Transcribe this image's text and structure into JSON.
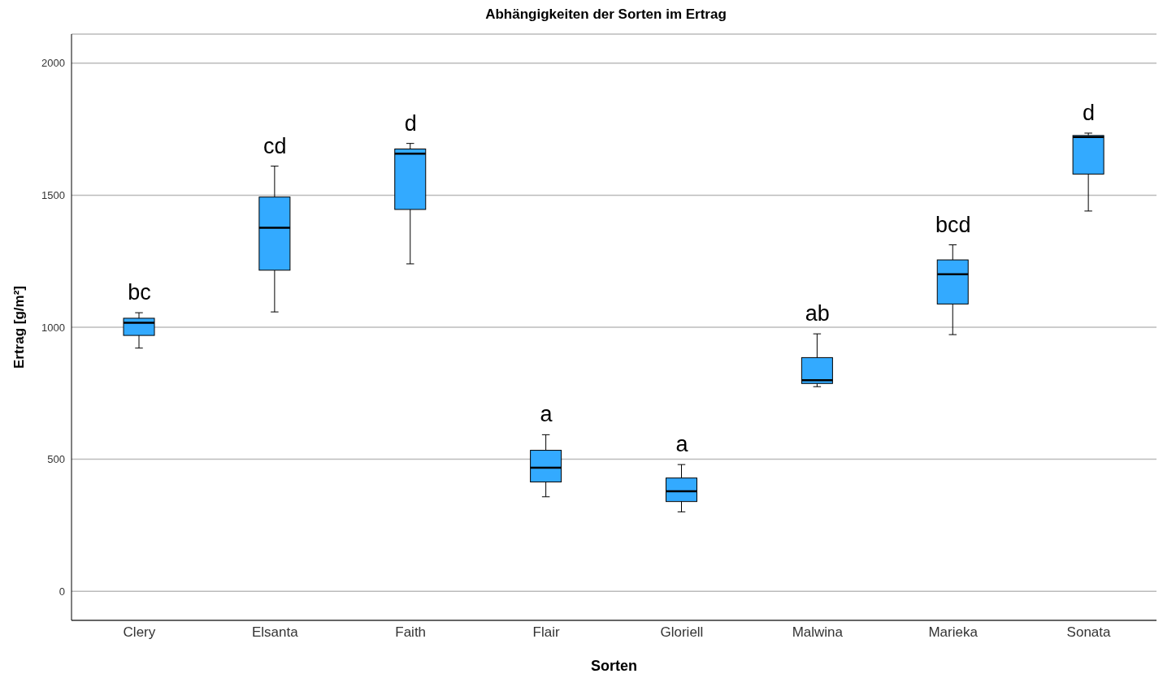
{
  "chart_data": {
    "type": "box",
    "title": "Abhängigkeiten der Sorten im Ertrag",
    "xlabel": "Sorten",
    "ylabel": "Ertrag [g/m²]",
    "categories": [
      "Clery",
      "Elsanta",
      "Faith",
      "Flair",
      "Gloriell",
      "Malwina",
      "Marieka",
      "Sonata"
    ],
    "color": "#33aaff",
    "boxes": [
      {
        "low": 921,
        "q1": 969,
        "median": 1017,
        "q3": 1034,
        "high": 1055
      },
      {
        "low": 1058,
        "q1": 1216,
        "median": 1377,
        "q3": 1493,
        "high": 1610
      },
      {
        "low": 1240,
        "q1": 1446,
        "median": 1657,
        "q3": 1675,
        "high": 1696
      },
      {
        "low": 358,
        "q1": 414,
        "median": 468,
        "q3": 534,
        "high": 593
      },
      {
        "low": 301,
        "q1": 340,
        "median": 379,
        "q3": 429,
        "high": 480
      },
      {
        "low": 775,
        "q1": 787,
        "median": 799,
        "q3": 885,
        "high": 975
      },
      {
        "low": 972,
        "q1": 1088,
        "median": 1201,
        "q3": 1255,
        "high": 1312
      },
      {
        "low": 1440,
        "q1": 1580,
        "median": 1720,
        "q3": 1726,
        "high": 1735
      }
    ],
    "ylim": [
      -110,
      2110
    ],
    "yticks": [
      0,
      500,
      1000,
      1500,
      2000
    ],
    "grid": "y",
    "annotations": [
      "bc",
      "cd",
      "d",
      "a",
      "a",
      "ab",
      "bcd",
      "d"
    ]
  }
}
